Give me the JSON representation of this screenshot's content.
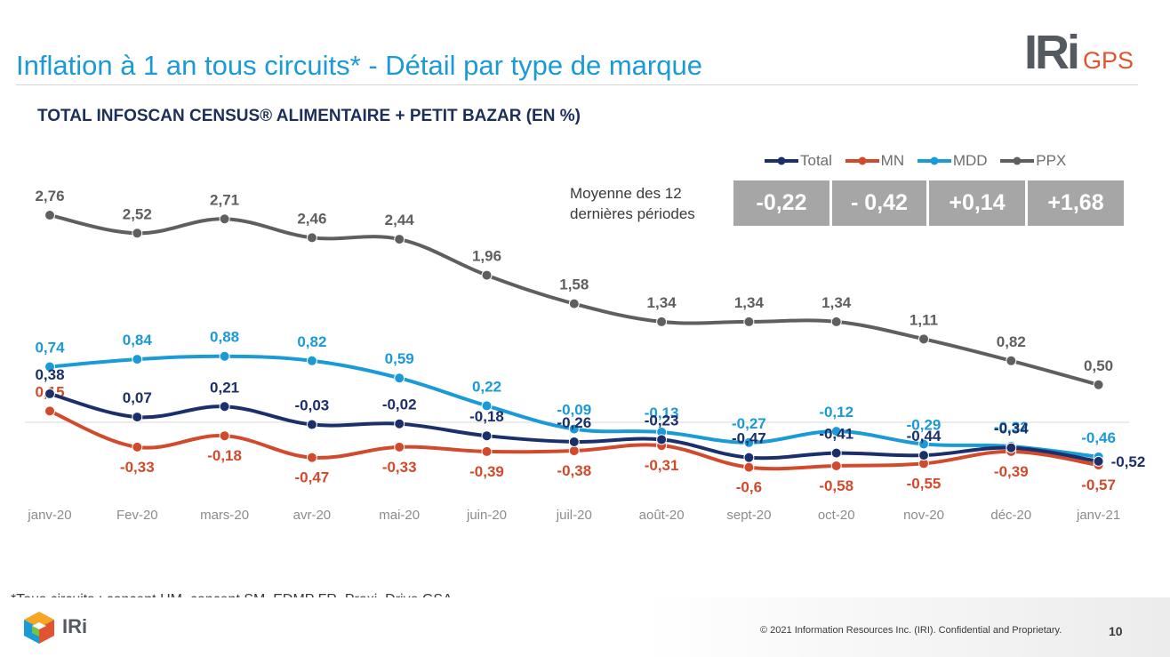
{
  "header": {
    "title": "Inflation à 1 an tous circuits* - Détail par type de marque",
    "logo_text": "IRi",
    "logo_suffix": "GPS",
    "subtitle": "TOTAL INFOSCAN CENSUS® ALIMENTAIRE + PETIT BAZAR (EN %)"
  },
  "averages": {
    "label_line1": "Moyenne des 12",
    "label_line2": "dernières périodes",
    "values": [
      "-0,22",
      "- 0,42",
      "+0,14",
      "+1,68"
    ]
  },
  "chart_data": {
    "type": "line",
    "categories": [
      "janv-20",
      "Fev-20",
      "mars-20",
      "avr-20",
      "mai-20",
      "juin-20",
      "juil-20",
      "août-20",
      "sept-20",
      "oct-20",
      "nov-20",
      "déc-20",
      "janv-21"
    ],
    "series": [
      {
        "name": "Total",
        "color": "#1b2f6b",
        "values": [
          0.38,
          0.07,
          0.21,
          -0.03,
          -0.02,
          -0.18,
          -0.26,
          -0.23,
          -0.47,
          -0.41,
          -0.44,
          -0.34,
          -0.52
        ],
        "labels": [
          "0,38",
          "0,07",
          "0,21",
          "-0,03",
          "-0,02",
          "-0,18",
          "-0,26",
          "-0,23",
          "-0,47",
          "-0,41",
          "-0,44",
          "-0,34",
          "-0,52"
        ]
      },
      {
        "name": "MN",
        "color": "#d24a2c",
        "values": [
          0.15,
          -0.33,
          -0.18,
          -0.47,
          -0.33,
          -0.39,
          -0.38,
          -0.31,
          -0.6,
          -0.58,
          -0.55,
          -0.39,
          -0.57
        ],
        "labels": [
          "0,15",
          "-0,33",
          "-0,18",
          "-0,47",
          "-0,33",
          "-0,39",
          "-0,38",
          "-0,31",
          "-0,6",
          "-0,58",
          "-0,55",
          "-0,39",
          "-0,57"
        ]
      },
      {
        "name": "MDD",
        "color": "#1a9ad6",
        "values": [
          0.74,
          0.84,
          0.88,
          0.82,
          0.59,
          0.22,
          -0.09,
          -0.13,
          -0.27,
          -0.12,
          -0.29,
          -0.32,
          -0.46
        ],
        "labels": [
          "0,74",
          "0,84",
          "0,88",
          "0,82",
          "0,59",
          "0,22",
          "-0,09",
          "-0,13",
          "-0,27",
          "-0,12",
          "-0,29",
          "-0,32",
          "-0,46"
        ]
      },
      {
        "name": "PPX",
        "color": "#5f5f5f",
        "values": [
          2.76,
          2.52,
          2.71,
          2.46,
          2.44,
          1.96,
          1.58,
          1.34,
          1.34,
          1.34,
          1.11,
          0.82,
          0.5
        ],
        "labels": [
          "2,76",
          "2,52",
          "2,71",
          "2,46",
          "2,44",
          "1,96",
          "1,58",
          "1,34",
          "1,34",
          "1,34",
          "1,11",
          "0,82",
          "0,50"
        ]
      }
    ],
    "legend_placement": "top-right",
    "grid": false,
    "zero_line": true
  },
  "footer": {
    "footnote": "*Tous circuits : concept HM, concept SM, EDMP FR, Proxi, Drive GSA",
    "logo_text": "IRi",
    "copyright": "© 2021 Information Resources Inc. (IRI). Confidential and Proprietary.",
    "page_number": "10"
  }
}
